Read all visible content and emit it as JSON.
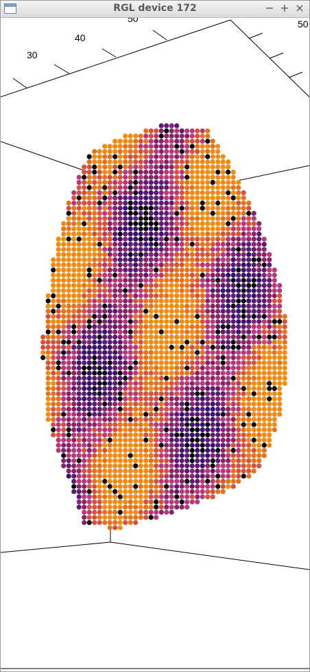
{
  "window": {
    "title": "RGL device 172",
    "buttons": [
      "−",
      "+",
      "×"
    ]
  },
  "axes": {
    "tick_labels": [
      "30",
      "40",
      "50",
      "50"
    ]
  }
}
